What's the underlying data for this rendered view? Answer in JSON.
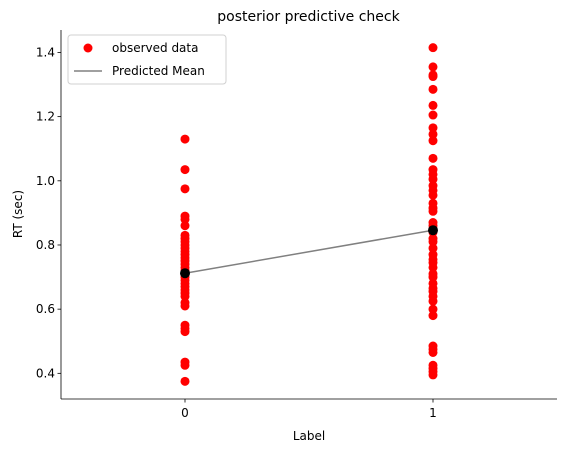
{
  "chart_data": {
    "type": "scatter",
    "title": "posterior predictive check",
    "xlabel": "Label",
    "ylabel": "RT (sec)",
    "xlim": [
      -0.5,
      1.5
    ],
    "ylim": [
      0.32,
      1.47
    ],
    "x_ticks": [
      0,
      1
    ],
    "y_ticks": [
      0.4,
      0.6,
      0.8,
      1.0,
      1.2,
      1.4
    ],
    "y_tick_labels": [
      "0.4",
      "0.6",
      "0.8",
      "1.0",
      "1.2",
      "1.4"
    ],
    "grid": false,
    "legend_position": "top-left",
    "observed": {
      "name": "observed data",
      "color": "#ff0000",
      "points": [
        {
          "x": 0,
          "y": [
            1.13,
            1.035,
            0.975,
            0.89,
            0.88,
            0.86,
            0.83,
            0.82,
            0.81,
            0.8,
            0.79,
            0.78,
            0.77,
            0.76,
            0.75,
            0.74,
            0.73,
            0.72,
            0.71,
            0.7,
            0.69,
            0.68,
            0.67,
            0.66,
            0.65,
            0.64,
            0.62,
            0.61,
            0.55,
            0.54,
            0.53,
            0.435,
            0.425,
            0.375
          ]
        },
        {
          "x": 1,
          "y": [
            1.415,
            1.355,
            1.33,
            1.325,
            1.285,
            1.235,
            1.205,
            1.165,
            1.145,
            1.125,
            1.07,
            1.035,
            1.02,
            1.005,
            0.985,
            0.97,
            0.955,
            0.93,
            0.915,
            0.905,
            0.87,
            0.86,
            0.85,
            0.84,
            0.82,
            0.81,
            0.79,
            0.77,
            0.755,
            0.745,
            0.73,
            0.71,
            0.7,
            0.68,
            0.665,
            0.655,
            0.64,
            0.625,
            0.6,
            0.58,
            0.485,
            0.475,
            0.465,
            0.425,
            0.415,
            0.405,
            0.395
          ]
        }
      ]
    },
    "predicted": {
      "name": "Predicted Mean",
      "color": "#808080",
      "marker_color": "#000000",
      "x": [
        0,
        1
      ],
      "y": [
        0.712,
        0.846
      ]
    }
  }
}
